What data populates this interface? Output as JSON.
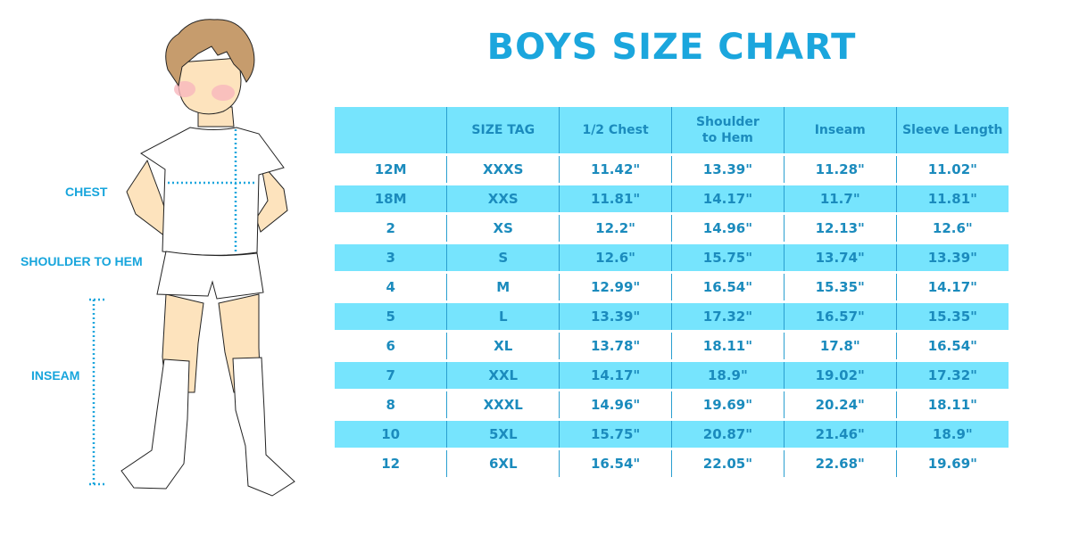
{
  "title": "BOYS SIZE CHART",
  "labels": {
    "chest": "CHEST",
    "shoulder_to_hem": "SHOULDER TO HEM",
    "inseam": "INSEAM"
  },
  "colors": {
    "accent": "#1ba6dd",
    "row_highlight": "#76e4fd",
    "text": "#1b8bbd"
  },
  "table": {
    "headers": [
      "",
      "SIZE TAG",
      "1/2 Chest",
      "Shoulder to Hem",
      "Inseam",
      "Sleeve Length"
    ],
    "rows": [
      [
        "12M",
        "XXXS",
        "11.42\"",
        "13.39\"",
        "11.28\"",
        "11.02\""
      ],
      [
        "18M",
        "XXS",
        "11.81\"",
        "14.17\"",
        "11.7\"",
        "11.81\""
      ],
      [
        "2",
        "XS",
        "12.2\"",
        "14.96\"",
        "12.13\"",
        "12.6\""
      ],
      [
        "3",
        "S",
        "12.6\"",
        "15.75\"",
        "13.74\"",
        "13.39\""
      ],
      [
        "4",
        "M",
        "12.99\"",
        "16.54\"",
        "15.35\"",
        "14.17\""
      ],
      [
        "5",
        "L",
        "13.39\"",
        "17.32\"",
        "16.57\"",
        "15.35\""
      ],
      [
        "6",
        "XL",
        "13.78\"",
        "18.11\"",
        "17.8\"",
        "16.54\""
      ],
      [
        "7",
        "XXL",
        "14.17\"",
        "18.9\"",
        "19.02\"",
        "17.32\""
      ],
      [
        "8",
        "XXXL",
        "14.96\"",
        "19.69\"",
        "20.24\"",
        "18.11\""
      ],
      [
        "10",
        "5XL",
        "15.75\"",
        "20.87\"",
        "21.46\"",
        "18.9\""
      ],
      [
        "12",
        "6XL",
        "16.54\"",
        "22.05\"",
        "22.68\"",
        "19.69\""
      ]
    ]
  }
}
